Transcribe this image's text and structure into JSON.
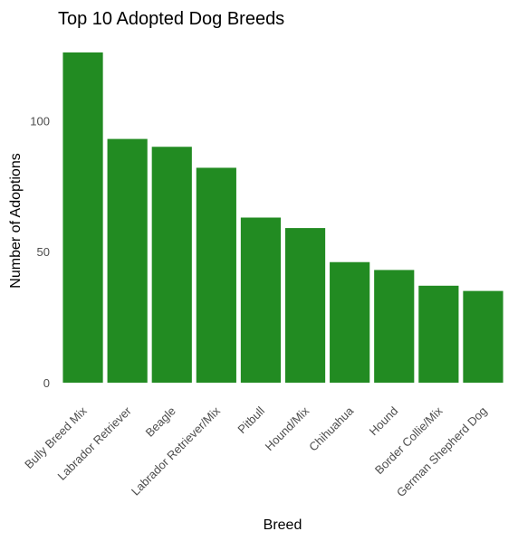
{
  "chart_data": {
    "type": "bar",
    "title": "Top 10 Adopted Dog Breeds",
    "xlabel": "Breed",
    "ylabel": "Number of Adoptions",
    "categories": [
      "Bully Breed Mix",
      "Labrador Retriever",
      "Beagle",
      "Labrador Retriever/Mix",
      "Pitbull",
      "Hound/Mix",
      "Chihuahua",
      "Hound",
      "Border Collie/Mix",
      "German Shepherd Dog"
    ],
    "values": [
      126,
      93,
      90,
      82,
      63,
      59,
      46,
      43,
      37,
      35
    ],
    "ylim": [
      0,
      126
    ],
    "yticks": [
      0,
      50,
      100
    ],
    "bar_color": "#228B22",
    "grid": false,
    "legend": "none"
  }
}
